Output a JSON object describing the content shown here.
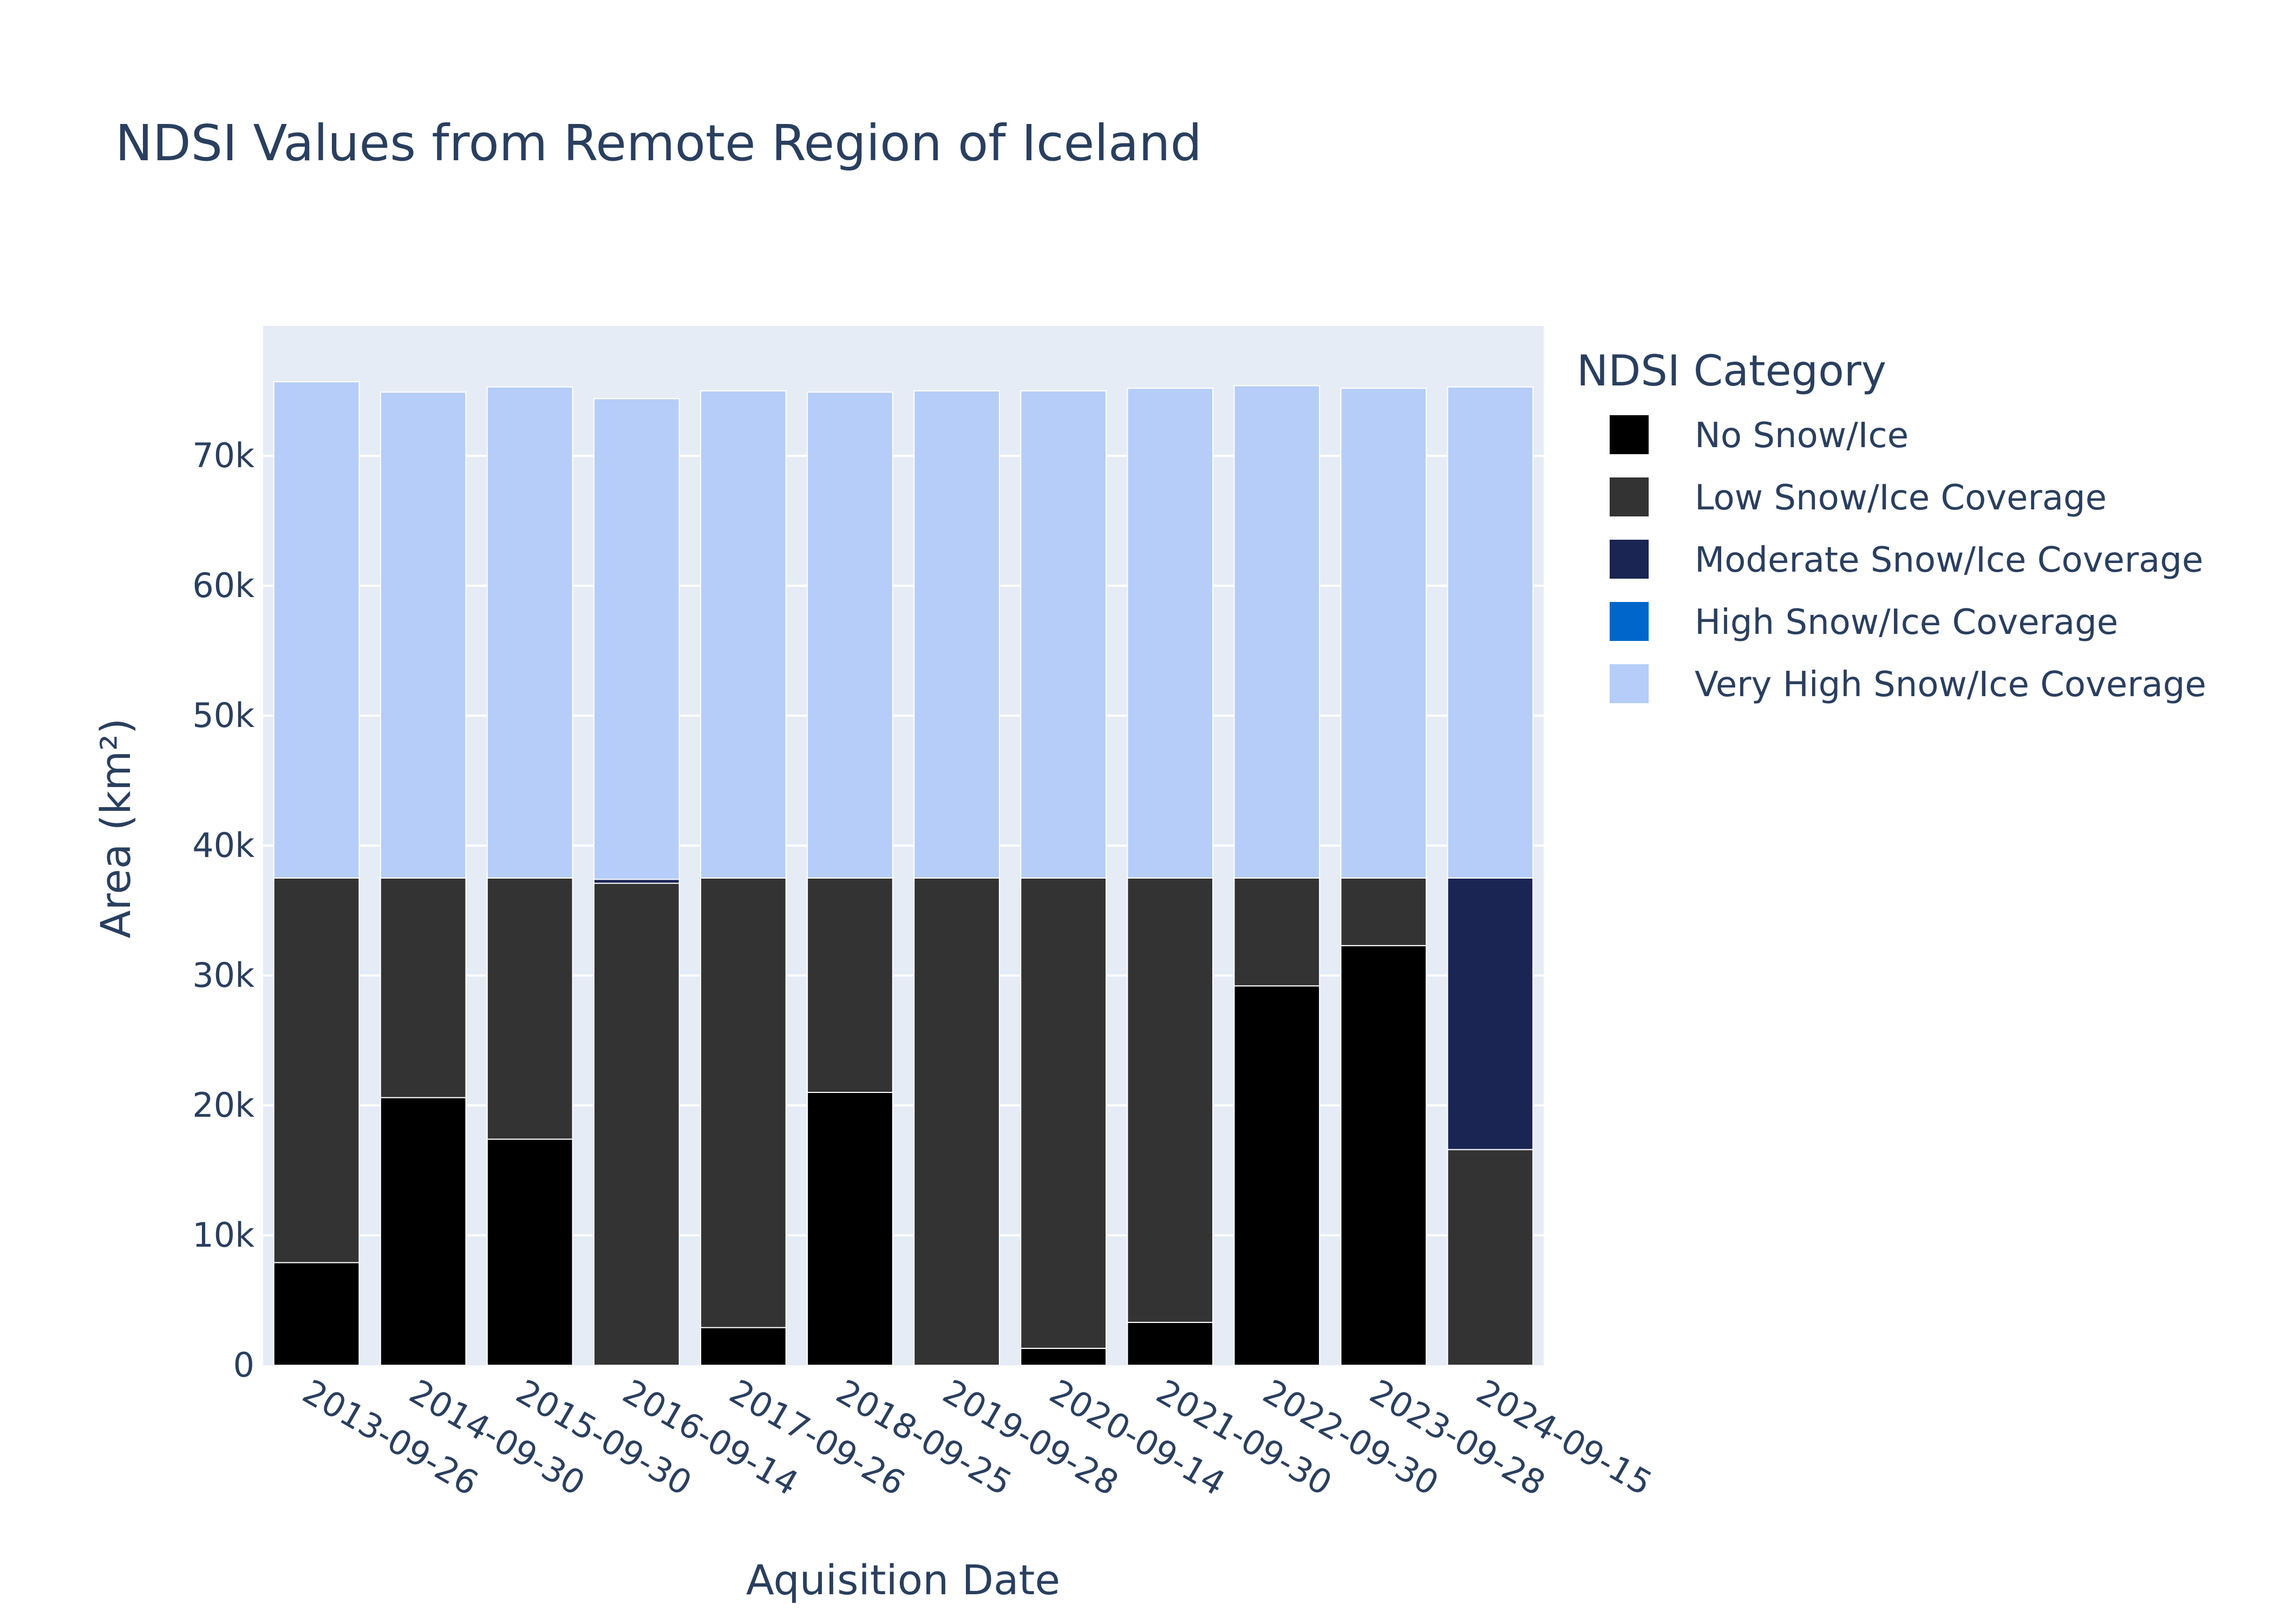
{
  "chart_data": {
    "type": "bar",
    "stacked": true,
    "title": "NDSI Values from Remote Region of Iceland",
    "xlabel": "Aquisition Date",
    "ylabel": "Area (km²)",
    "ylim": [
      0,
      80000
    ],
    "yticks": [
      0,
      10000,
      20000,
      30000,
      40000,
      50000,
      60000,
      70000
    ],
    "ytick_labels": [
      "0",
      "10k",
      "20k",
      "30k",
      "40k",
      "50k",
      "60k",
      "70k"
    ],
    "grid": true,
    "legend_title": "NDSI Category",
    "legend_position": "right",
    "categories": [
      "2013-09-26",
      "2014-09-30",
      "2015-09-30",
      "2016-09-14",
      "2017-09-26",
      "2018-09-25",
      "2019-09-28",
      "2020-09-14",
      "2021-09-30",
      "2022-09-30",
      "2023-09-28",
      "2024-09-15"
    ],
    "series": [
      {
        "name": "No Snow/Ice",
        "color": "#000000",
        "values": [
          7900,
          20600,
          17400,
          0,
          2900,
          21000,
          0,
          1300,
          3300,
          29200,
          32300,
          0
        ]
      },
      {
        "name": "Low Snow/Ice Coverage",
        "color": "#333333",
        "values": [
          29600,
          16900,
          20100,
          37100,
          34600,
          16500,
          37500,
          36200,
          34200,
          8300,
          5200,
          16600
        ]
      },
      {
        "name": "Moderate Snow/Ice Coverage",
        "color": "#1a2553",
        "values": [
          0,
          0,
          0,
          300,
          0,
          0,
          0,
          0,
          0,
          0,
          0,
          20900
        ]
      },
      {
        "name": "High Snow/Ice Coverage",
        "color": "#0066cc",
        "values": [
          0,
          0,
          0,
          0,
          0,
          0,
          0,
          0,
          0,
          0,
          0,
          0
        ]
      },
      {
        "name": "Very High Snow/Ice Coverage",
        "color": "#b5cdf8",
        "values": [
          38200,
          37400,
          37800,
          37000,
          37500,
          37400,
          37500,
          37500,
          37700,
          37900,
          37700,
          37800
        ]
      }
    ]
  }
}
